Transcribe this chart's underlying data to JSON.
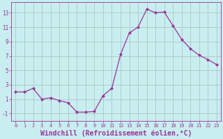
{
  "x": [
    0,
    1,
    2,
    3,
    4,
    5,
    6,
    7,
    8,
    9,
    10,
    11,
    12,
    13,
    14,
    15,
    16,
    17,
    18,
    19,
    20,
    21,
    22,
    23
  ],
  "y": [
    2.0,
    2.0,
    2.5,
    1.0,
    1.2,
    0.8,
    0.5,
    -0.8,
    -0.8,
    -0.7,
    1.5,
    2.5,
    7.2,
    10.2,
    11.0,
    13.5,
    13.0,
    13.1,
    11.2,
    9.3,
    8.0,
    7.1,
    6.5,
    5.8
  ],
  "line_color": "#993399",
  "marker": "D",
  "marker_size": 2.0,
  "bg_color": "#c8eef0",
  "grid_color": "#b0ccc8",
  "tick_color": "#993399",
  "xlabel": "Windchill (Refroidissement éolien,°C)",
  "xlabel_fontsize": 7,
  "ylabel_ticks": [
    -1,
    1,
    3,
    5,
    7,
    9,
    11,
    13
  ],
  "xtick_labels": [
    "0",
    "1",
    "2",
    "3",
    "4",
    "5",
    "6",
    "7",
    "8",
    "9",
    "10",
    "11",
    "12",
    "13",
    "14",
    "15",
    "16",
    "17",
    "18",
    "19",
    "20",
    "21",
    "22",
    "23"
  ],
  "ylim": [
    -2.0,
    14.5
  ],
  "xlim": [
    -0.5,
    23.5
  ]
}
